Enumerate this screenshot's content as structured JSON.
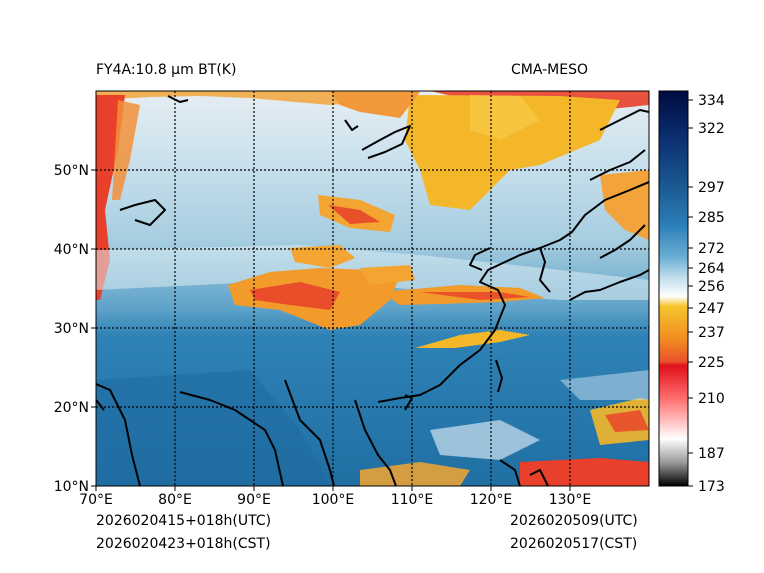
{
  "header": {
    "product": "FY4A:10.8 µm BT(K)",
    "source": "CMA-MESO"
  },
  "footer": {
    "init_utc": "2026020415+018h(UTC)",
    "init_cst": "2026020423+018h(CST)",
    "valid_utc": "2026020509(UTC)",
    "valid_cst": "2026020517(CST)"
  },
  "map": {
    "lon_range": [
      70,
      140
    ],
    "lat_range": [
      10,
      60
    ],
    "lon_ticks": [
      "70°E",
      "80°E",
      "90°E",
      "100°E",
      "110°E",
      "120°E",
      "130°E"
    ],
    "lat_ticks": [
      "10°N",
      "20°N",
      "30°N",
      "40°N",
      "50°N"
    ],
    "grid_style": "dotted",
    "colors": {
      "cold_cloud": "#e8402a",
      "mid_cloud": "#f4b72a",
      "high_cloud_white": "#eef4f7",
      "warm_surface": "#1f6fa3",
      "coast": "#000000"
    }
  },
  "colorbar": {
    "vmin": 173,
    "vmax": 339,
    "ticks": [
      "334",
      "322",
      "297",
      "285",
      "272",
      "264",
      "256",
      "247",
      "237",
      "225",
      "210",
      "187",
      "173"
    ],
    "colors": {
      "top": "#000a40",
      "blue": "#2b7fb8",
      "white": "#ffffff",
      "yellow": "#f6c52c",
      "orange": "#f28b22",
      "red": "#e0101a",
      "black": "#000000"
    }
  }
}
